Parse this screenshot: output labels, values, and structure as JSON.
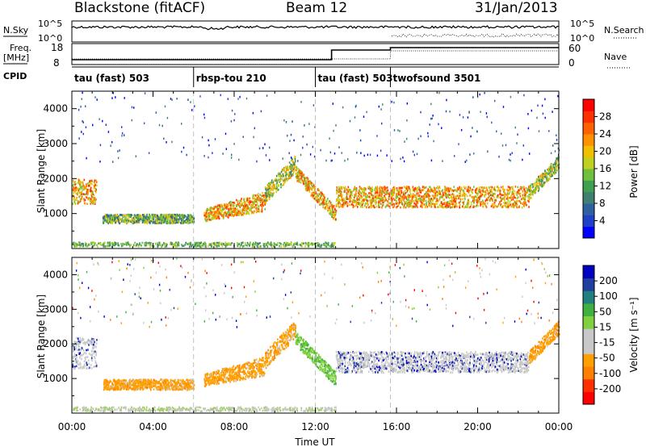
{
  "header": {
    "station": "Blackstone (fitACF)",
    "beam": "Beam 12",
    "date": "31/Jan/2013"
  },
  "top_panels": {
    "nsky_label": "N.Sky",
    "nsky_ticks": [
      "10^5",
      "10^0"
    ],
    "nsky_right_ticks": [
      "10^5",
      "10^0"
    ],
    "nsearch_label": "N.Search",
    "freq_label_1": "Freq.",
    "freq_label_2": "[MHz]",
    "freq_ticks": [
      "18",
      "8"
    ],
    "nave_ticks": [
      "60",
      "0"
    ],
    "nave_label": "Nave",
    "cpid_label": "CPID",
    "cpid_segments": [
      {
        "label": "tau (fast) 503",
        "start_hr": 0
      },
      {
        "label": "rbsp-tou 210",
        "start_hr": 6
      },
      {
        "label": "tau (fast) 503",
        "start_hr": 12
      },
      {
        "label": "twofsound 3501",
        "start_hr": 15.7
      }
    ]
  },
  "chart_data": [
    {
      "type": "heatmap",
      "name": "power",
      "ylabel": "Slant Range [km]",
      "ylim": [
        0,
        4500
      ],
      "yticks": [
        "1000",
        "2000",
        "3000",
        "4000"
      ],
      "xlim": [
        0,
        24
      ],
      "colorbar": {
        "label": "Power [dB]",
        "ticks": [
          "28",
          "24",
          "20",
          "16",
          "12",
          "8",
          "4"
        ],
        "colors": [
          "#0000ff",
          "#2040c8",
          "#3060a0",
          "#408070",
          "#40a050",
          "#70c040",
          "#c0d020",
          "#f0c000",
          "#ff9000",
          "#ff6000",
          "#ff3000",
          "#ff0000"
        ]
      },
      "echo_bands": [
        {
          "t0": 0.0,
          "t1": 1.2,
          "r0": 1300,
          "r1": 2000,
          "power": 20
        },
        {
          "t0": 1.5,
          "t1": 6.0,
          "r0": 750,
          "r1": 1000,
          "power": 12
        },
        {
          "t0": 6.5,
          "t1": 9.5,
          "r0": 800,
          "r1": 1300,
          "power": 20
        },
        {
          "t0": 9.5,
          "t1": 11.0,
          "r0": 1300,
          "r1": 2600,
          "power": 16
        },
        {
          "t0": 11.0,
          "t1": 13.0,
          "r0": 800,
          "r1": 2000,
          "power": 20
        },
        {
          "t0": 13.0,
          "t1": 22.5,
          "r0": 1200,
          "r1": 1800,
          "power": 20
        },
        {
          "t0": 22.5,
          "t1": 24.0,
          "r0": 1500,
          "r1": 2600,
          "power": 16
        }
      ]
    },
    {
      "type": "heatmap",
      "name": "velocity",
      "ylabel": "Slant Range [km]",
      "ylim": [
        0,
        4500
      ],
      "yticks": [
        "1000",
        "2000",
        "3000",
        "4000"
      ],
      "xlim": [
        0,
        24
      ],
      "xticks": [
        "00:00",
        "04:00",
        "08:00",
        "12:00",
        "16:00",
        "20:00",
        "00:00"
      ],
      "xlabel": "Time UT",
      "colorbar": {
        "label": "Velocity [m s⁻¹]",
        "ticks": [
          "200",
          "100",
          "50",
          "15",
          "-15",
          "-50",
          "-100",
          "-200"
        ],
        "colors": [
          "#ff0000",
          "#ff3000",
          "#ff8000",
          "#ffa000",
          "#c8c8c8",
          "#c8c8c8",
          "#80d040",
          "#40b040",
          "#208080",
          "#2040a0",
          "#0000c0"
        ]
      },
      "echo_bands": [
        {
          "t0": 0.0,
          "t1": 1.2,
          "r0": 1300,
          "r1": 2200,
          "velocity": 0
        },
        {
          "t0": 1.5,
          "t1": 6.0,
          "r0": 700,
          "r1": 1000,
          "velocity": -50
        },
        {
          "t0": 6.5,
          "t1": 9.5,
          "r0": 800,
          "r1": 1400,
          "velocity": -50
        },
        {
          "t0": 9.5,
          "t1": 11.0,
          "r0": 1300,
          "r1": 2600,
          "velocity": -50
        },
        {
          "t0": 11.0,
          "t1": 13.0,
          "r0": 800,
          "r1": 2000,
          "velocity": 30
        },
        {
          "t0": 13.0,
          "t1": 22.5,
          "r0": 1200,
          "r1": 1800,
          "velocity": 0
        },
        {
          "t0": 22.5,
          "t1": 24.0,
          "r0": 1500,
          "r1": 2600,
          "velocity": -50
        }
      ]
    }
  ]
}
